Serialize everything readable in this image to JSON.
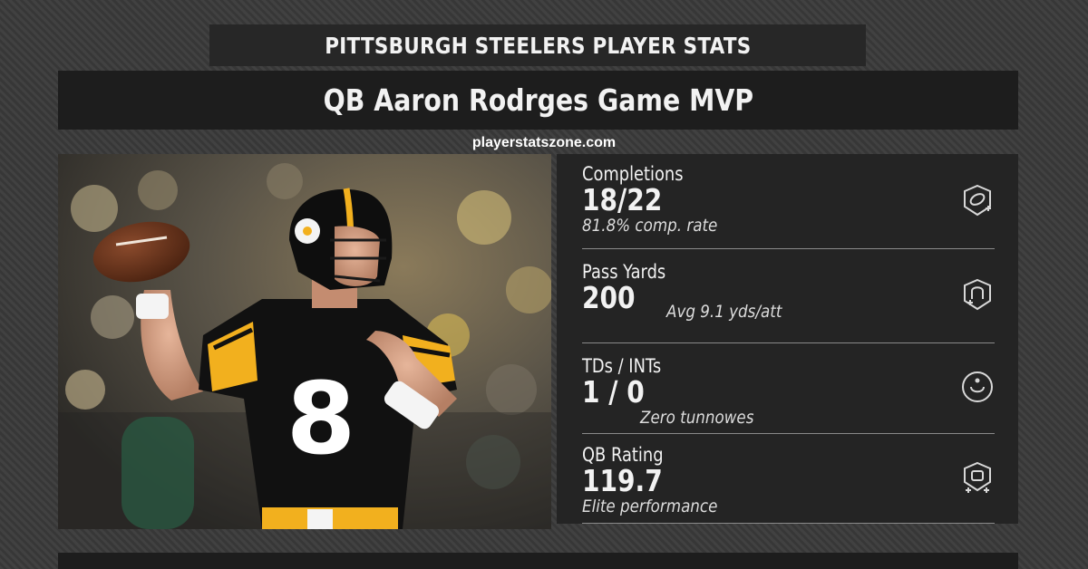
{
  "header": {
    "banner": "PITTSBURGH STEELERS PLAYER STATS",
    "title": "QB Aaron Rodrges Game MVP",
    "website": "playerstatszone.com"
  },
  "photo": {
    "jersey_number": "8",
    "colors": {
      "jersey": "#111111",
      "gold": "#f2b01e",
      "helmet": "#0e0e0e"
    }
  },
  "stats": [
    {
      "label": "Completions",
      "value": "18/22",
      "note": "81.8% comp. rate",
      "icon": "football-badge-icon"
    },
    {
      "label": "Pass Yards",
      "value": "200",
      "note": "Avg 9.1 yds/att",
      "icon": "distance-badge-icon"
    },
    {
      "label": "TDs / INTs",
      "value": "1 / 0",
      "note": "Zero tunnowes",
      "icon": "target-circle-icon"
    },
    {
      "label": "QB Rating",
      "value": "119.7",
      "note": "Elite performance",
      "icon": "rating-badge-icon"
    }
  ]
}
